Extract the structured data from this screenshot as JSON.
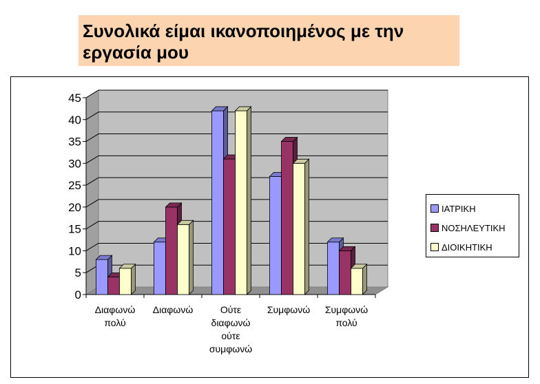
{
  "title": "Συνολικά είμαι ικανοποιημένος με την εργασία μου",
  "colors": {
    "title_bg": "#fcd5b0",
    "plot_bg": "#c0c0c0",
    "series": [
      "#9999ff",
      "#993366",
      "#ffffcc"
    ]
  },
  "chart_data": {
    "type": "bar",
    "title": "",
    "xlabel": "",
    "ylabel": "",
    "ylim": [
      0,
      45
    ],
    "yticks": [
      0,
      5,
      10,
      15,
      20,
      25,
      30,
      35,
      40,
      45
    ],
    "grid": true,
    "legend_position": "right",
    "categories": [
      [
        "Διαφωνώ",
        "πολύ"
      ],
      [
        "Διαφωνώ"
      ],
      [
        "Ούτε",
        "διαφωνώ",
        "ούτε",
        "συμφωνώ"
      ],
      [
        "Συμφωνώ"
      ],
      [
        "Συμφωνώ",
        "πολύ"
      ]
    ],
    "series": [
      {
        "name": "ΙΑΤΡΙΚΗ",
        "values": [
          8,
          12,
          42,
          27,
          12
        ]
      },
      {
        "name": "ΝΟΣΗΛΕΥΤΙΚΗ",
        "values": [
          4,
          20,
          31,
          35,
          10
        ]
      },
      {
        "name": "ΔΙΟΙΚΗΤΙΚΗ",
        "values": [
          6,
          16,
          42,
          30,
          6
        ]
      }
    ]
  }
}
